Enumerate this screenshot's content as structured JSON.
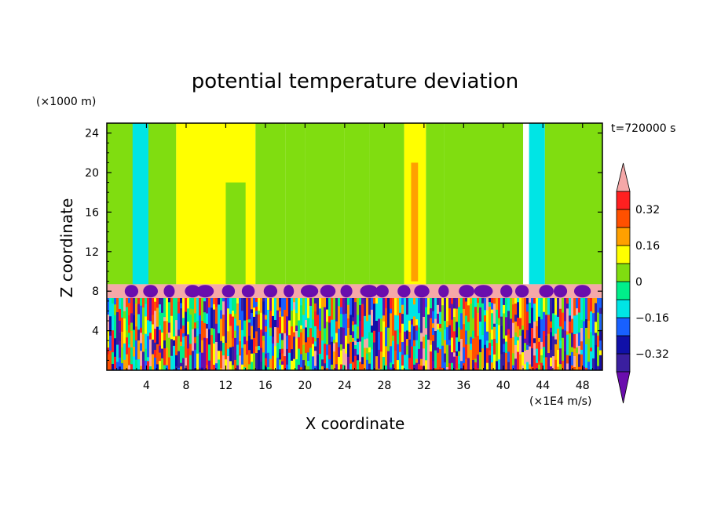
{
  "chart_data": {
    "type": "heatmap",
    "title": "potential temperature deviation",
    "time_label": "t=720000 s",
    "xlabel": "X coordinate",
    "ylabel": "Z coordinate",
    "x_unit": "(×1E4 m/s)",
    "y_unit": "(×1000 m)",
    "xlim": [
      0,
      50
    ],
    "ylim": [
      0,
      25
    ],
    "x_ticks": [
      4,
      8,
      12,
      16,
      20,
      24,
      28,
      32,
      36,
      40,
      44,
      48
    ],
    "y_ticks": [
      4,
      8,
      12,
      16,
      20,
      24
    ],
    "colorbar": {
      "levels": [
        -0.4,
        -0.32,
        -0.24,
        -0.16,
        -0.08,
        0,
        0.08,
        0.16,
        0.24,
        0.32,
        0.4
      ],
      "tick_labels": [
        "0.32",
        "0.16",
        "0",
        "−0.16",
        "−0.32"
      ],
      "tick_values": [
        0.32,
        0.16,
        0,
        -0.16,
        -0.32
      ],
      "colors": [
        "#6a0dad",
        "#3a1f9f",
        "#1010a8",
        "#1860ff",
        "#00e5e5",
        "#00ee8a",
        "#80dd10",
        "#ffff00",
        "#ffa000",
        "#ff5000",
        "#ff2020",
        "#f5a8a8"
      ],
      "extend": "both"
    },
    "bands": [
      {
        "x0": 0,
        "x1": 3,
        "y0": 8.7,
        "y1": 25,
        "value": 0
      },
      {
        "x0": 2.6,
        "x1": 4.2,
        "y0": 8.7,
        "y1": 25,
        "value": -0.1
      },
      {
        "x0": 4.2,
        "x1": 7,
        "y0": 8.7,
        "y1": 25,
        "value": 0.06
      },
      {
        "x0": 7,
        "x1": 15,
        "y0": 8.7,
        "y1": 25,
        "value": 0.14
      },
      {
        "x0": 12,
        "x1": 14,
        "y0": 8.7,
        "y1": 19,
        "value": 0.06
      },
      {
        "x0": 15,
        "x1": 18,
        "y0": 8.7,
        "y1": 25,
        "value": 0.06
      },
      {
        "x0": 18,
        "x1": 20,
        "y0": 8.7,
        "y1": 25,
        "value": 0.02
      },
      {
        "x0": 20,
        "x1": 24,
        "y0": 8.7,
        "y1": 25,
        "value": 0
      },
      {
        "x0": 24,
        "x1": 26.5,
        "y0": 8.7,
        "y1": 25,
        "value": 0.06
      },
      {
        "x0": 26.5,
        "x1": 30,
        "y0": 8.7,
        "y1": 25,
        "value": 0
      },
      {
        "x0": 30,
        "x1": 32.2,
        "y0": 8.7,
        "y1": 25,
        "value": 0.13
      },
      {
        "x0": 30.7,
        "x1": 31.4,
        "y0": 9,
        "y1": 21,
        "value": 0.2
      },
      {
        "x0": 32.2,
        "x1": 34,
        "y0": 8.7,
        "y1": 25,
        "value": 0.04
      },
      {
        "x0": 34,
        "x1": 42,
        "y0": 8.7,
        "y1": 25,
        "value": 0
      },
      {
        "x0": 42.6,
        "x1": 44.2,
        "y0": 8.7,
        "y1": 25,
        "value": -0.1
      },
      {
        "x0": 44.2,
        "x1": 50,
        "y0": 8.7,
        "y1": 25,
        "value": 0
      }
    ],
    "layers": [
      {
        "y0": 7.3,
        "y1": 8.7,
        "value": 0.45
      },
      {
        "y0": 0,
        "y1": 7.3,
        "value": "mixed"
      }
    ]
  }
}
